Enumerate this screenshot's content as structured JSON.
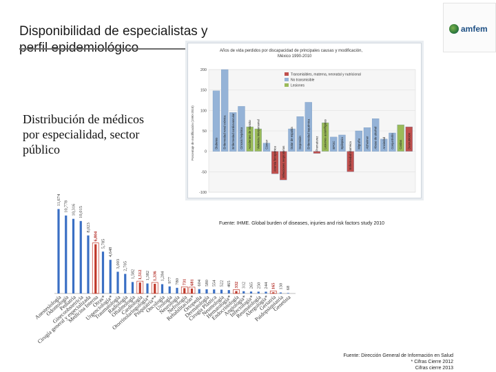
{
  "slide": {
    "title": "Disponibilidad de especialistas y perfil epidemiológico",
    "subtitle": "Distribución de médicos por especialidad, sector público",
    "logo_text": "amfem",
    "source_main": "Fuente: Dirección General de Información en Salud",
    "source_note_1": "* Cifras Cierre 2012",
    "source_note_2": "Cifras cierre 2013"
  },
  "inset_chart": {
    "title_line_1": "Años de vida perdidos por discapacidad de principales causas y modificación,",
    "title_line_2": "México 1990-2010",
    "ylabel": "Porcentaje de modificación (1990-2010)",
    "legend": [
      "Transmisibles, materna, neonatal y nutricional",
      "No transmisible",
      "Lesiones"
    ],
    "source": "Fuente: IHME. Global burden of diseases, injuries and risk factors study 2010",
    "categories": [
      "Diabetes",
      "Enfermedad renal crónica",
      "Enfermedad cardiovascular",
      "Cirrosis hepática",
      "Accidentes de tránsito",
      "Violencia interpersonal",
      "Cáncer",
      "Anemia ferropénica",
      "Infecciones respiratorias",
      "Dolor de espalda",
      "Depresión",
      "Enfermedad isquémica",
      "Prematurez",
      "Lesiones autoinfligidas",
      "EPOC",
      "Epilepsia",
      "Enfermedad diarreica",
      "Migraña",
      "Alzheimer",
      "Abuso de alcohol",
      "Ansiedad",
      "Conjuntivitis",
      "Caídas",
      "Desnutrición"
    ],
    "values": [
      148,
      200,
      95,
      110,
      60,
      55,
      20,
      -55,
      -70,
      55,
      85,
      120,
      -5,
      70,
      35,
      40,
      -50,
      50,
      58,
      80,
      30,
      45,
      65,
      60
    ],
    "series_type": [
      "nt",
      "nt",
      "nt",
      "nt",
      "les",
      "les",
      "nt",
      "tmn",
      "tmn",
      "nt",
      "nt",
      "nt",
      "tmn",
      "les",
      "nt",
      "nt",
      "tmn",
      "nt",
      "nt",
      "nt",
      "nt",
      "nt",
      "les",
      "tmn"
    ],
    "ylim": [
      -100,
      200
    ],
    "yticks": [
      "200",
      "150",
      "100",
      "50",
      "0",
      "-50",
      "-100"
    ]
  },
  "chart_data": {
    "type": "bar",
    "title": "Distribución de médicos por especialidad, sector público",
    "categories": [
      "Anestesiología",
      "Odontología",
      "Pediatría",
      "Ginecoobstetricia",
      "Cirugía general y especializada",
      "Medicina Interna",
      "Otras*",
      "Urgenciología*",
      "Traumatología",
      "Radiología",
      "Oftalmología",
      "Cardiología",
      "Otorrinolaringología*",
      "Psiquiatría**",
      "Oncología",
      "Urología",
      "Neurología",
      "Nefrología",
      "Rehabilitación*",
      "Ortopedia",
      "Dermatología",
      "Cirugía Plástica",
      "Neumología",
      "Hematología*",
      "Endocrinología",
      "Angiología*",
      "Infectología*",
      "Reumatología",
      "Alergología*",
      "Geriatría",
      "Paidopsiquiatría",
      "Genetista"
    ],
    "values": [
      11674,
      10778,
      10316,
      10015,
      8023,
      6804,
      5785,
      4648,
      3003,
      2705,
      1582,
      1512,
      1382,
      1336,
      1284,
      977,
      780,
      731,
      681,
      604,
      580,
      554,
      522,
      465,
      332,
      312,
      265,
      250,
      244,
      165,
      130,
      68
    ],
    "labels": [
      "11,674",
      "10,778",
      "10,316",
      "10,015",
      "8,023",
      "6,804",
      "5,785",
      "4,648",
      "3,003",
      "2,705",
      "1,582",
      "1,512",
      "1,382",
      "1,336",
      "1,284",
      "977",
      "780",
      "731",
      "681",
      "604",
      "580",
      "554",
      "522",
      "465",
      "332",
      "312",
      "265",
      "250",
      "244",
      "165",
      "130",
      "68"
    ],
    "highlight": [
      false,
      false,
      false,
      false,
      false,
      true,
      false,
      false,
      false,
      false,
      false,
      true,
      false,
      true,
      false,
      false,
      false,
      true,
      true,
      false,
      false,
      false,
      false,
      false,
      true,
      false,
      false,
      false,
      false,
      true,
      false,
      false
    ],
    "ylim": [
      0,
      12000
    ]
  },
  "colors": {
    "bar": "#3a6fc4",
    "highlight": "#c0392b",
    "nt": "#95b3d7",
    "tmn": "#c0504d",
    "les": "#9bbb59"
  }
}
